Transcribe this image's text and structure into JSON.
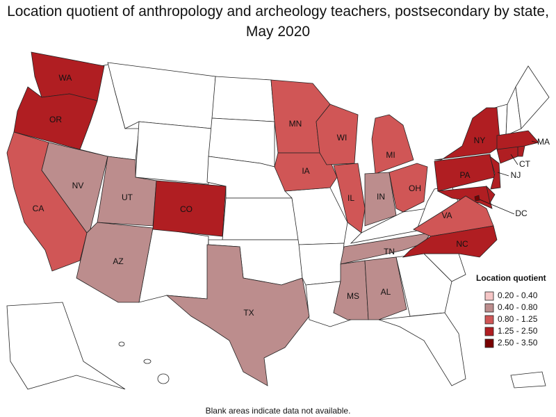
{
  "title": "Location quotient of anthropology and archeology teachers, postsecondary by state, May 2020",
  "legend": {
    "title": "Location quotient",
    "items": [
      {
        "label": "0.20 - 0.40",
        "color": "#f5c6c6"
      },
      {
        "label": "0.40 - 0.80",
        "color": "#bc8d8d"
      },
      {
        "label": "0.80 - 1.25",
        "color": "#d05656"
      },
      {
        "label": "1.25 - 2.50",
        "color": "#b01e22"
      },
      {
        "label": "2.50 - 3.50",
        "color": "#780000"
      }
    ]
  },
  "states": [
    {
      "label": "WA",
      "bin": 3
    },
    {
      "label": "OR",
      "bin": 3
    },
    {
      "label": "CA",
      "bin": 2
    },
    {
      "label": "NV",
      "bin": 1
    },
    {
      "label": "UT",
      "bin": 1
    },
    {
      "label": "AZ",
      "bin": 1
    },
    {
      "label": "CO",
      "bin": 3
    },
    {
      "label": "TX",
      "bin": 1
    },
    {
      "label": "MN",
      "bin": 2
    },
    {
      "label": "IA",
      "bin": 2
    },
    {
      "label": "WI",
      "bin": 2
    },
    {
      "label": "IL",
      "bin": 2
    },
    {
      "label": "MI",
      "bin": 2
    },
    {
      "label": "IN",
      "bin": 1
    },
    {
      "label": "OH",
      "bin": 2
    },
    {
      "label": "TN",
      "bin": 1
    },
    {
      "label": "MS",
      "bin": 1
    },
    {
      "label": "AL",
      "bin": 1
    },
    {
      "label": "VA",
      "bin": 2
    },
    {
      "label": "NC",
      "bin": 3
    },
    {
      "label": "PA",
      "bin": 3
    },
    {
      "label": "NY",
      "bin": 3
    },
    {
      "label": "NJ",
      "bin": 3
    },
    {
      "label": "CT",
      "bin": 3
    },
    {
      "label": "MA",
      "bin": 3
    },
    {
      "label": "DC",
      "bin": 4
    }
  ],
  "unlabeled_bins": [
    3,
    3,
    3
  ],
  "footnote": "Blank areas indicate data not available."
}
